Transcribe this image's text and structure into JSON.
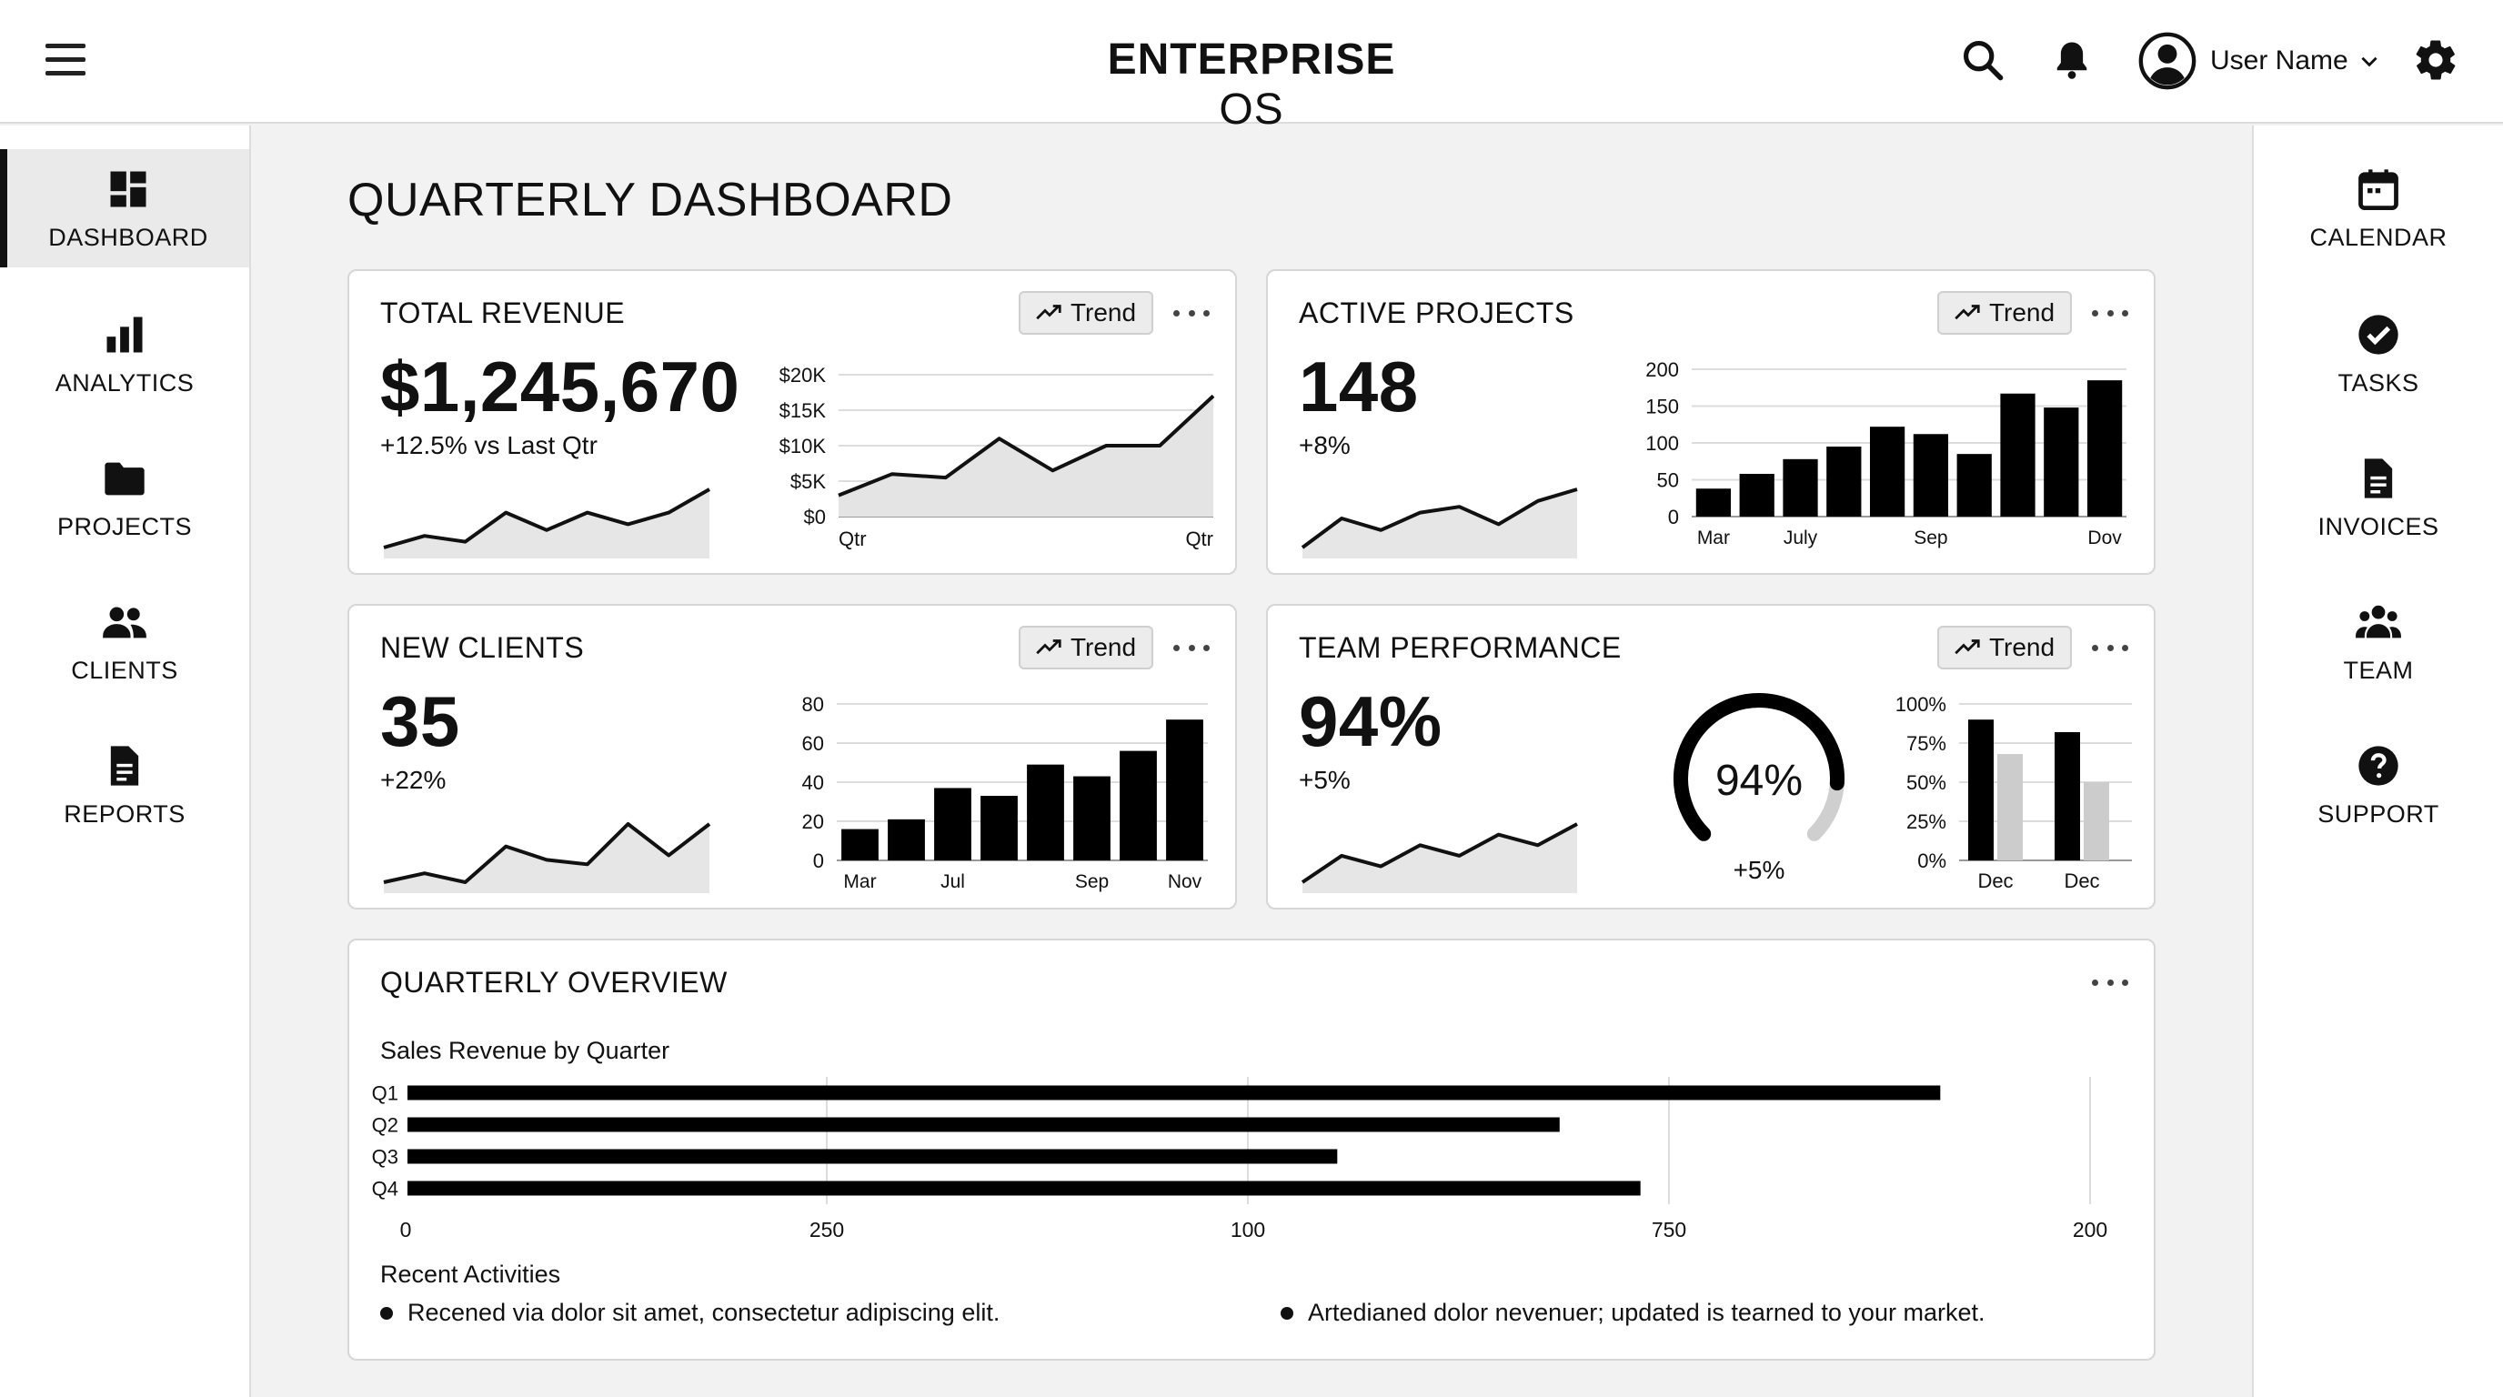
{
  "header": {
    "brand_bold": "ENTERPRISE",
    "brand_light": "OS",
    "user_name": "User Name"
  },
  "sidebar_left": {
    "items": [
      {
        "label": "DASHBOARD",
        "icon": "dashboard-icon",
        "active": true
      },
      {
        "label": "ANALYTICS",
        "icon": "bar-chart-icon"
      },
      {
        "label": "PROJECTS",
        "icon": "folder-icon"
      },
      {
        "label": "CLIENTS",
        "icon": "people-icon"
      },
      {
        "label": "REPORTS",
        "icon": "document-icon"
      }
    ]
  },
  "sidebar_right": {
    "items": [
      {
        "label": "CALENDAR",
        "icon": "calendar-icon"
      },
      {
        "label": "TASKS",
        "icon": "check-circle-icon"
      },
      {
        "label": "INVOICES",
        "icon": "invoice-icon"
      },
      {
        "label": "TEAM",
        "icon": "team-icon"
      },
      {
        "label": "SUPPORT",
        "icon": "help-icon"
      }
    ]
  },
  "page": {
    "title": "QUARTERLY DASHBOARD"
  },
  "trend_label": "Trend",
  "cards": {
    "revenue": {
      "title": "TOTAL REVENUE",
      "value": "$1,245,670",
      "delta": "+12.5% vs Last Qtr"
    },
    "projects": {
      "title": "ACTIVE PROJECTS",
      "value": "148",
      "delta": "+8%"
    },
    "clients": {
      "title": "NEW CLIENTS",
      "value": "35",
      "delta": "+22%"
    },
    "team": {
      "title": "TEAM PERFORMANCE",
      "value": "94%",
      "delta": "+5%",
      "gauge_value": "94%",
      "gauge_delta": "+5%",
      "gauge_fraction": 0.94
    }
  },
  "overview": {
    "title": "QUARTERLY OVERVIEW",
    "subtitle": "Sales Revenue by Quarter",
    "recent_title": "Recent Activities",
    "activities": [
      "Recened via dolor sit amet, consectetur adipiscing elit.",
      "Artedianed dolor nevenuer; updated is tearned to your market."
    ]
  },
  "chart_data": [
    {
      "type": "line",
      "id": "revenue-sparkline",
      "y": [
        2,
        4,
        3,
        8,
        5,
        8,
        6,
        8,
        12
      ]
    },
    {
      "type": "area",
      "id": "revenue-chart",
      "y_tick_labels": [
        "$20K",
        "$15K",
        "$10K",
        "$5K",
        "$0"
      ],
      "x_tick_labels": [
        "Qtr",
        "Qtr"
      ],
      "ylim": [
        0,
        20000
      ],
      "y": [
        3000,
        6000,
        5500,
        11000,
        6500,
        10000,
        10000,
        17000
      ],
      "grid": true
    },
    {
      "type": "line",
      "id": "projects-sparkline",
      "y": [
        2,
        7,
        5,
        8,
        9,
        6,
        10,
        12
      ]
    },
    {
      "type": "bar",
      "id": "projects-chart",
      "y_tick_labels": [
        "200",
        "150",
        "100",
        "50",
        "0"
      ],
      "x_tick_labels": [
        "Mar",
        "July",
        "Sep",
        "Dov"
      ],
      "ylim": [
        0,
        200
      ],
      "values": [
        38,
        58,
        78,
        95,
        122,
        112,
        85,
        167,
        148,
        185
      ],
      "grid": true
    },
    {
      "type": "line",
      "id": "clients-sparkline",
      "y": [
        2,
        4,
        2,
        10,
        7,
        6,
        15,
        8,
        15
      ]
    },
    {
      "type": "bar",
      "id": "clients-chart",
      "y_tick_labels": [
        "80",
        "60",
        "40",
        "20",
        "0"
      ],
      "x_tick_labels": [
        "Mar",
        "Jul",
        "Sep",
        "Nov"
      ],
      "ylim": [
        0,
        80
      ],
      "values": [
        16,
        21,
        37,
        33,
        49,
        43,
        56,
        72
      ],
      "grid": true
    },
    {
      "type": "line",
      "id": "team-sparkline",
      "y": [
        2,
        7,
        5,
        9,
        7,
        11,
        9,
        13
      ]
    },
    {
      "type": "bar",
      "id": "team-chart",
      "y_tick_labels": [
        "100%",
        "75%",
        "50%",
        "25%",
        "0%"
      ],
      "x_tick_labels": [
        "Dec",
        "Dec"
      ],
      "ylim": [
        0,
        100
      ],
      "series": [
        {
          "values": [
            90,
            82
          ],
          "color": "#000000"
        },
        {
          "values": [
            68,
            50
          ],
          "color": "#cccccc"
        }
      ],
      "grid": true
    },
    {
      "type": "bar",
      "orientation": "horizontal",
      "id": "overview-chart",
      "categories": [
        "Q1",
        "Q2",
        "Q3",
        "Q4"
      ],
      "x_tick_labels": [
        "0",
        "250",
        "100",
        "750",
        "200"
      ],
      "values": [
        0.91,
        0.684,
        0.552,
        0.732
      ],
      "grid": true
    }
  ]
}
